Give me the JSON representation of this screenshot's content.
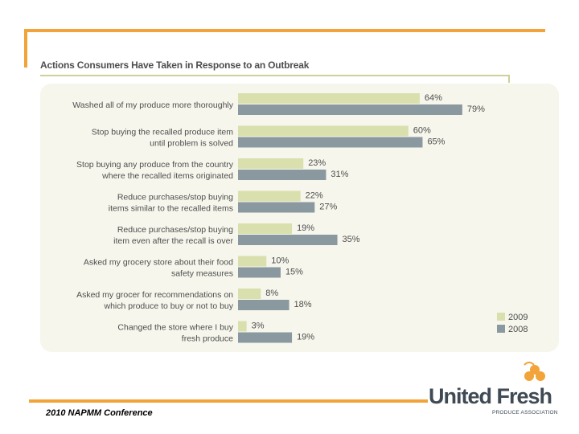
{
  "chart_data": {
    "type": "bar",
    "orientation": "horizontal",
    "title": "Actions Consumers Have Taken in Response to an Outbreak",
    "categories": [
      [
        "Washed all of my produce more thoroughly"
      ],
      [
        "Stop buying the recalled produce item",
        "until problem is solved"
      ],
      [
        "Stop buying any produce from the country",
        "where the recalled items originated"
      ],
      [
        "Reduce purchases/stop buying",
        "items similar to the recalled items"
      ],
      [
        "Reduce purchases/stop buying",
        "item even after the recall is over"
      ],
      [
        "Asked my grocery store about their food",
        "safety measures"
      ],
      [
        "Asked my grocer for recommendations on",
        "which produce to buy or not to buy"
      ],
      [
        "Changed the store where I buy",
        "fresh produce"
      ]
    ],
    "series": [
      {
        "name": "2009",
        "color": "#dadfae",
        "values": [
          64,
          60,
          23,
          22,
          19,
          10,
          8,
          3
        ]
      },
      {
        "name": "2008",
        "color": "#8a98a0",
        "values": [
          79,
          65,
          31,
          27,
          35,
          15,
          18,
          19
        ]
      }
    ],
    "value_suffix": "%",
    "xlim": [
      0,
      100
    ],
    "legend": "bottom-right"
  },
  "footer": {
    "conference": "2010 NAPMM Conference"
  },
  "logo": {
    "name": "United Fresh",
    "tagline": "PRODUCE ASSOCIATION"
  },
  "colors": {
    "accent": "#f2a33a",
    "label_text": "#4e4e4e"
  }
}
